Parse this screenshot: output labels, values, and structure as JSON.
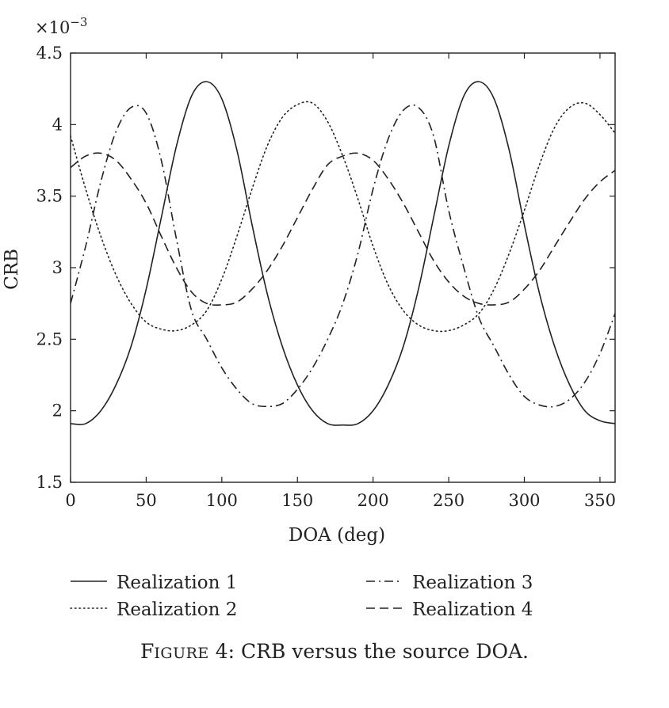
{
  "chart_data": {
    "type": "line",
    "xlabel": "DOA (deg)",
    "ylabel": "CRB",
    "y_multiplier_label": "×10",
    "y_multiplier_exponent": "−3",
    "xlim": [
      0,
      360
    ],
    "ylim": [
      1.5,
      4.5
    ],
    "xticks": [
      0,
      50,
      100,
      150,
      200,
      250,
      300,
      350
    ],
    "yticks": [
      1.5,
      2,
      2.5,
      3,
      3.5,
      4,
      4.5
    ],
    "ytick_labels": [
      "1.5",
      "2",
      "2.5",
      "3",
      "3.5",
      "4",
      "4.5"
    ],
    "grid": false,
    "legend_position": "bottom",
    "x": [
      0,
      10,
      20,
      30,
      40,
      50,
      60,
      70,
      80,
      90,
      100,
      110,
      120,
      130,
      140,
      150,
      160,
      170,
      180,
      190,
      200,
      210,
      220,
      230,
      240,
      250,
      260,
      270,
      280,
      290,
      300,
      310,
      320,
      330,
      340,
      350,
      360
    ],
    "series": [
      {
        "name": "Realization 1",
        "style": "solid",
        "values": [
          1.91,
          1.91,
          2.0,
          2.18,
          2.45,
          2.85,
          3.35,
          3.85,
          4.2,
          4.3,
          4.18,
          3.82,
          3.3,
          2.82,
          2.45,
          2.18,
          2.0,
          1.91,
          1.9,
          1.91,
          2.0,
          2.18,
          2.45,
          2.85,
          3.35,
          3.85,
          4.2,
          4.3,
          4.18,
          3.82,
          3.3,
          2.82,
          2.45,
          2.18,
          2.0,
          1.93,
          1.91
        ]
      },
      {
        "name": "Realization 2",
        "style": "dotted",
        "values": [
          3.92,
          3.55,
          3.22,
          2.95,
          2.75,
          2.62,
          2.57,
          2.56,
          2.6,
          2.7,
          2.92,
          3.22,
          3.55,
          3.85,
          4.05,
          4.14,
          4.15,
          4.02,
          3.78,
          3.48,
          3.15,
          2.88,
          2.7,
          2.6,
          2.56,
          2.56,
          2.6,
          2.68,
          2.85,
          3.1,
          3.4,
          3.72,
          3.98,
          4.12,
          4.15,
          4.07,
          3.94
        ]
      },
      {
        "name": "Realization 3",
        "style": "dashdot",
        "values": [
          2.75,
          3.15,
          3.6,
          3.95,
          4.12,
          4.08,
          3.75,
          3.2,
          2.7,
          2.5,
          2.3,
          2.15,
          2.05,
          2.03,
          2.05,
          2.15,
          2.3,
          2.5,
          2.75,
          3.1,
          3.55,
          3.9,
          4.1,
          4.12,
          3.92,
          3.4,
          3.0,
          2.65,
          2.45,
          2.25,
          2.1,
          2.04,
          2.03,
          2.08,
          2.2,
          2.4,
          2.68
        ]
      },
      {
        "name": "Realization 4",
        "style": "dashed",
        "values": [
          3.7,
          3.78,
          3.8,
          3.75,
          3.62,
          3.45,
          3.22,
          3.0,
          2.83,
          2.75,
          2.74,
          2.76,
          2.85,
          2.98,
          3.15,
          3.35,
          3.55,
          3.72,
          3.78,
          3.8,
          3.75,
          3.62,
          3.45,
          3.25,
          3.05,
          2.9,
          2.8,
          2.75,
          2.74,
          2.76,
          2.85,
          2.98,
          3.15,
          3.32,
          3.48,
          3.6,
          3.68
        ]
      }
    ]
  },
  "caption": {
    "figure_cap": "F",
    "figure_small": "IGURE",
    "figure_number": " 4:",
    "text": " CRB versus the source DOA."
  }
}
